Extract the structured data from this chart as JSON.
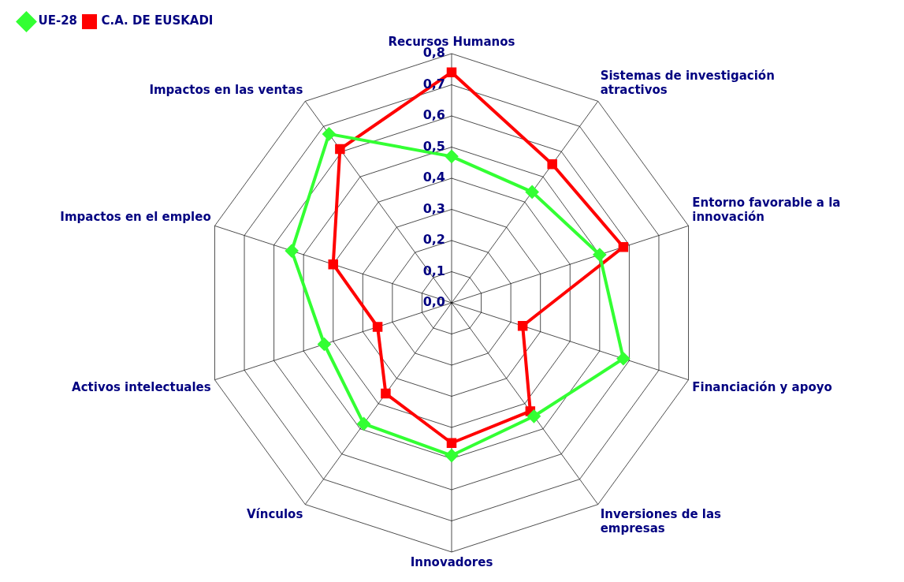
{
  "chart_data": {
    "type": "radar",
    "categories": [
      "Recursos Humanos",
      "Sistemas de investigación atractivos",
      "Entorno favorable a la innovación",
      "Financiación y apoyo",
      "Inversiones de las empresas",
      "Innovadores",
      "Vínculos",
      "Activos intelectuales",
      "Impactos en el empleo",
      "Impactos en las ventas"
    ],
    "series": [
      {
        "name": "UE-28",
        "color": "#33ff33",
        "marker": "diamond",
        "values": [
          0.47,
          0.44,
          0.5,
          0.58,
          0.45,
          0.49,
          0.48,
          0.43,
          0.54,
          0.67
        ]
      },
      {
        "name": "C.A. DE EUSKADI",
        "color": "#ff0000",
        "marker": "square",
        "values": [
          0.74,
          0.55,
          0.58,
          0.24,
          0.43,
          0.45,
          0.36,
          0.25,
          0.4,
          0.61
        ]
      }
    ],
    "ylim": [
      0,
      0.8
    ],
    "yticks": [
      {
        "value": 0,
        "label": "0,0"
      },
      {
        "value": 0.1,
        "label": "0,1"
      },
      {
        "value": 0.2,
        "label": "0,2"
      },
      {
        "value": 0.3,
        "label": "0,3"
      },
      {
        "value": 0.4,
        "label": "0,4"
      },
      {
        "value": 0.5,
        "label": "0,5"
      },
      {
        "value": 0.6,
        "label": "0,6"
      },
      {
        "value": 0.7,
        "label": "0,7"
      },
      {
        "value": 0.8,
        "label": "0,8"
      }
    ],
    "grid": true,
    "legend": "top left"
  }
}
